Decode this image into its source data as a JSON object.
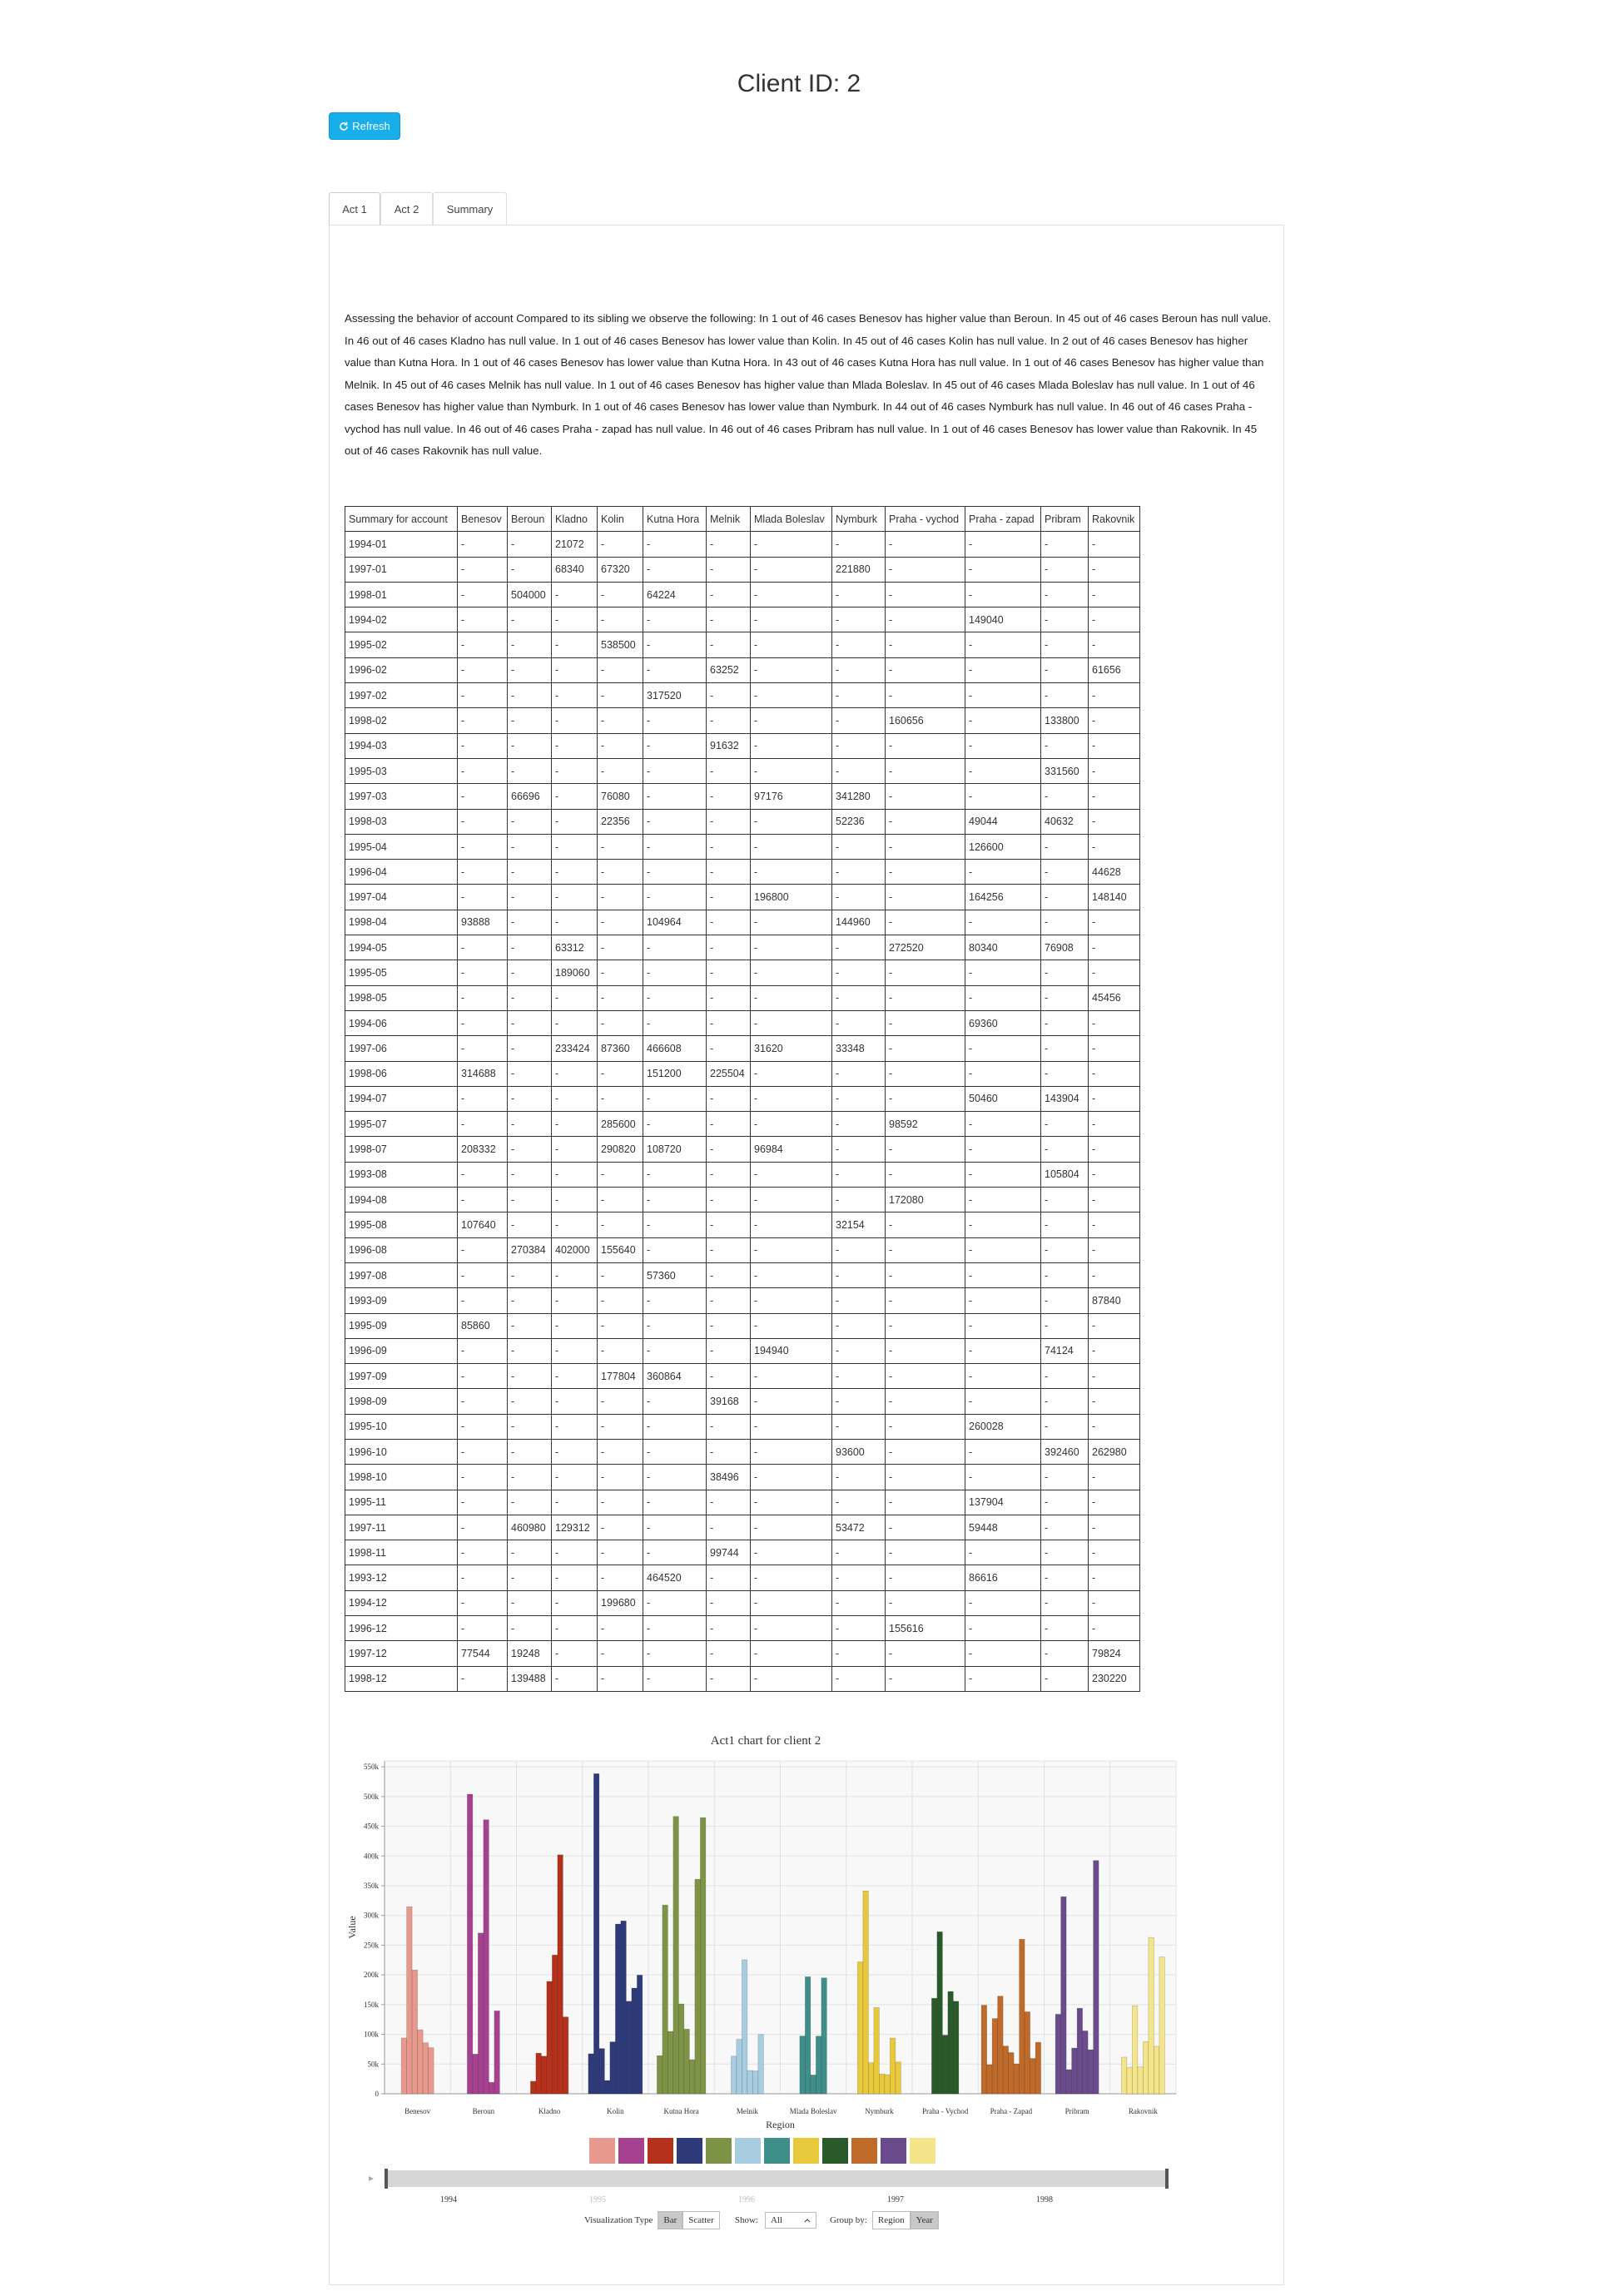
{
  "header": {
    "title": "Client ID: 2",
    "refresh": "Refresh"
  },
  "tabs": [
    "Act 1",
    "Act 2",
    "Summary"
  ],
  "description": "Assessing the behavior of account Compared to its sibling we observe the following: In 1 out of 46 cases Benesov has higher value than Beroun. In 45 out of 46 cases Beroun has null value. In 46 out of 46 cases Kladno has null value. In 1 out of 46 cases Benesov has lower value than Kolin. In 45 out of 46 cases Kolin has null value. In 2 out of 46 cases Benesov has higher value than Kutna Hora. In 1 out of 46 cases Benesov has lower value than Kutna Hora. In 43 out of 46 cases Kutna Hora has null value. In 1 out of 46 cases Benesov has higher value than Melnik. In 45 out of 46 cases Melnik has null value. In 1 out of 46 cases Benesov has higher value than Mlada Boleslav. In 45 out of 46 cases Mlada Boleslav has null value. In 1 out of 46 cases Benesov has higher value than Nymburk. In 1 out of 46 cases Benesov has lower value than Nymburk. In 44 out of 46 cases Nymburk has null value. In 46 out of 46 cases Praha - vychod has null value. In 46 out of 46 cases Praha - zapad has null value. In 46 out of 46 cases Pribram has null value. In 1 out of 46 cases Benesov has lower value than Rakovnik. In 45 out of 46 cases Rakovnik has null value.",
  "table": {
    "columns": [
      "Summary for account",
      "Benesov",
      "Beroun",
      "Kladno",
      "Kolin",
      "Kutna Hora",
      "Melnik",
      "Mlada Boleslav",
      "Nymburk",
      "Praha - vychod",
      "Praha - zapad",
      "Pribram",
      "Rakovnik"
    ],
    "rows": [
      [
        "1994-01",
        "-",
        "-",
        21072,
        "-",
        "-",
        "-",
        "-",
        "-",
        "-",
        "-",
        "-",
        "-"
      ],
      [
        "1997-01",
        "-",
        "-",
        68340,
        67320,
        "-",
        "-",
        "-",
        221880,
        "-",
        "-",
        "-",
        "-"
      ],
      [
        "1998-01",
        "-",
        504000,
        "-",
        "-",
        64224,
        "-",
        "-",
        "-",
        "-",
        "-",
        "-",
        "-"
      ],
      [
        "1994-02",
        "-",
        "-",
        "-",
        "-",
        "-",
        "-",
        "-",
        "-",
        "-",
        149040,
        "-",
        "-"
      ],
      [
        "1995-02",
        "-",
        "-",
        "-",
        538500,
        "-",
        "-",
        "-",
        "-",
        "-",
        "-",
        "-",
        "-"
      ],
      [
        "1996-02",
        "-",
        "-",
        "-",
        "-",
        "-",
        63252,
        "-",
        "-",
        "-",
        "-",
        "-",
        61656
      ],
      [
        "1997-02",
        "-",
        "-",
        "-",
        "-",
        317520,
        "-",
        "-",
        "-",
        "-",
        "-",
        "-",
        "-"
      ],
      [
        "1998-02",
        "-",
        "-",
        "-",
        "-",
        "-",
        "-",
        "-",
        "-",
        160656,
        "-",
        133800,
        "-"
      ],
      [
        "1994-03",
        "-",
        "-",
        "-",
        "-",
        "-",
        91632,
        "-",
        "-",
        "-",
        "-",
        "-",
        "-"
      ],
      [
        "1995-03",
        "-",
        "-",
        "-",
        "-",
        "-",
        "-",
        "-",
        "-",
        "-",
        "-",
        331560,
        "-"
      ],
      [
        "1997-03",
        "-",
        66696,
        "-",
        76080,
        "-",
        "-",
        97176,
        341280,
        "-",
        "-",
        "-",
        "-"
      ],
      [
        "1998-03",
        "-",
        "-",
        "-",
        22356,
        "-",
        "-",
        "-",
        52236,
        "-",
        49044,
        40632,
        "-"
      ],
      [
        "1995-04",
        "-",
        "-",
        "-",
        "-",
        "-",
        "-",
        "-",
        "-",
        "-",
        126600,
        "-",
        "-"
      ],
      [
        "1996-04",
        "-",
        "-",
        "-",
        "-",
        "-",
        "-",
        "-",
        "-",
        "-",
        "-",
        "-",
        44628
      ],
      [
        "1997-04",
        "-",
        "-",
        "-",
        "-",
        "-",
        "-",
        196800,
        "-",
        "-",
        164256,
        "-",
        148140
      ],
      [
        "1998-04",
        93888,
        "-",
        "-",
        "-",
        104964,
        "-",
        "-",
        144960,
        "-",
        "-",
        "-",
        "-"
      ],
      [
        "1994-05",
        "-",
        "-",
        63312,
        "-",
        "-",
        "-",
        "-",
        "-",
        272520,
        80340,
        76908,
        "-"
      ],
      [
        "1995-05",
        "-",
        "-",
        189060,
        "-",
        "-",
        "-",
        "-",
        "-",
        "-",
        "-",
        "-",
        "-"
      ],
      [
        "1998-05",
        "-",
        "-",
        "-",
        "-",
        "-",
        "-",
        "-",
        "-",
        "-",
        "-",
        "-",
        45456
      ],
      [
        "1994-06",
        "-",
        "-",
        "-",
        "-",
        "-",
        "-",
        "-",
        "-",
        "-",
        69360,
        "-",
        "-"
      ],
      [
        "1997-06",
        "-",
        "-",
        233424,
        87360,
        466608,
        "-",
        31620,
        33348,
        "-",
        "-",
        "-",
        "-"
      ],
      [
        "1998-06",
        314688,
        "-",
        "-",
        "-",
        151200,
        225504,
        "-",
        "-",
        "-",
        "-",
        "-",
        "-"
      ],
      [
        "1994-07",
        "-",
        "-",
        "-",
        "-",
        "-",
        "-",
        "-",
        "-",
        "-",
        50460,
        143904,
        "-"
      ],
      [
        "1995-07",
        "-",
        "-",
        "-",
        285600,
        "-",
        "-",
        "-",
        "-",
        98592,
        "-",
        "-",
        "-"
      ],
      [
        "1998-07",
        208332,
        "-",
        "-",
        290820,
        108720,
        "-",
        96984,
        "-",
        "-",
        "-",
        "-",
        "-"
      ],
      [
        "1993-08",
        "-",
        "-",
        "-",
        "-",
        "-",
        "-",
        "-",
        "-",
        "-",
        "-",
        105804,
        "-"
      ],
      [
        "1994-08",
        "-",
        "-",
        "-",
        "-",
        "-",
        "-",
        "-",
        "-",
        172080,
        "-",
        "-",
        "-"
      ],
      [
        "1995-08",
        107640,
        "-",
        "-",
        "-",
        "-",
        "-",
        "-",
        32154,
        "-",
        "-",
        "-",
        "-"
      ],
      [
        "1996-08",
        "-",
        270384,
        402000,
        155640,
        "-",
        "-",
        "-",
        "-",
        "-",
        "-",
        "-",
        "-"
      ],
      [
        "1997-08",
        "-",
        "-",
        "-",
        "-",
        57360,
        "-",
        "-",
        "-",
        "-",
        "-",
        "-",
        "-"
      ],
      [
        "1993-09",
        "-",
        "-",
        "-",
        "-",
        "-",
        "-",
        "-",
        "-",
        "-",
        "-",
        "-",
        87840
      ],
      [
        "1995-09",
        85860,
        "-",
        "-",
        "-",
        "-",
        "-",
        "-",
        "-",
        "-",
        "-",
        "-",
        "-"
      ],
      [
        "1996-09",
        "-",
        "-",
        "-",
        "-",
        "-",
        "-",
        194940,
        "-",
        "-",
        "-",
        74124,
        "-"
      ],
      [
        "1997-09",
        "-",
        "-",
        "-",
        177804,
        360864,
        "-",
        "-",
        "-",
        "-",
        "-",
        "-",
        "-"
      ],
      [
        "1998-09",
        "-",
        "-",
        "-",
        "-",
        "-",
        39168,
        "-",
        "-",
        "-",
        "-",
        "-",
        "-"
      ],
      [
        "1995-10",
        "-",
        "-",
        "-",
        "-",
        "-",
        "-",
        "-",
        "-",
        "-",
        260028,
        "-",
        "-"
      ],
      [
        "1996-10",
        "-",
        "-",
        "-",
        "-",
        "-",
        "-",
        "-",
        93600,
        "-",
        "-",
        392460,
        262980
      ],
      [
        "1998-10",
        "-",
        "-",
        "-",
        "-",
        "-",
        38496,
        "-",
        "-",
        "-",
        "-",
        "-",
        "-"
      ],
      [
        "1995-11",
        "-",
        "-",
        "-",
        "-",
        "-",
        "-",
        "-",
        "-",
        "-",
        137904,
        "-",
        "-"
      ],
      [
        "1997-11",
        "-",
        460980,
        129312,
        "-",
        "-",
        "-",
        "-",
        53472,
        "-",
        59448,
        "-",
        "-"
      ],
      [
        "1998-11",
        "-",
        "-",
        "-",
        "-",
        "-",
        99744,
        "-",
        "-",
        "-",
        "-",
        "-",
        "-"
      ],
      [
        "1993-12",
        "-",
        "-",
        "-",
        "-",
        464520,
        "-",
        "-",
        "-",
        "-",
        86616,
        "-",
        "-"
      ],
      [
        "1994-12",
        "-",
        "-",
        "-",
        199680,
        "-",
        "-",
        "-",
        "-",
        "-",
        "-",
        "-",
        "-"
      ],
      [
        "1996-12",
        "-",
        "-",
        "-",
        "-",
        "-",
        "-",
        "-",
        "-",
        155616,
        "-",
        "-",
        "-"
      ],
      [
        "1997-12",
        77544,
        19248,
        "-",
        "-",
        "-",
        "-",
        "-",
        "-",
        "-",
        "-",
        "-",
        79824
      ],
      [
        "1998-12",
        "-",
        139488,
        "-",
        "-",
        "-",
        "-",
        "-",
        "-",
        "-",
        "-",
        "-",
        230220
      ]
    ]
  },
  "chart_data": {
    "type": "bar",
    "title": "Act1 chart for client 2",
    "x_label": "Region",
    "y_label": "Value",
    "categories": [
      "Benesov",
      "Beroun",
      "Kladno",
      "Kolin",
      "Kutna Hora",
      "Melnik",
      "Mlada Boleslav",
      "Nymburk",
      "Praha - Vychod",
      "Praha - Zapad",
      "Pribram",
      "Rakovnik"
    ],
    "colors": [
      "#e8998d",
      "#a6418f",
      "#b5311b",
      "#2e3a7a",
      "#7d9446",
      "#a9cde0",
      "#3e8e8a",
      "#e8c93c",
      "#2b5a2a",
      "#c06a2a",
      "#6a4c8c",
      "#f5e58a"
    ],
    "ylim": [
      0,
      560000
    ],
    "yticks": [
      0,
      {
        "value": 50000,
        "label": "50k"
      },
      {
        "value": 100000,
        "label": "100k"
      },
      {
        "value": 150000,
        "label": "150k"
      },
      {
        "value": 200000,
        "label": "200k"
      },
      {
        "value": 250000,
        "label": "250k"
      },
      {
        "value": 300000,
        "label": "300k"
      },
      {
        "value": 350000,
        "label": "350k"
      },
      {
        "value": 400000,
        "label": "400k"
      },
      {
        "value": 450000,
        "label": "450k"
      },
      {
        "value": 500000,
        "label": "500k"
      },
      {
        "value": 550000,
        "label": "550k"
      }
    ],
    "grid": true
  },
  "controls": {
    "slider_ticks": [
      1994,
      1995,
      1996,
      1997,
      1998
    ],
    "visualization_label": "Visualization Type",
    "visualization_options": [
      "Bar",
      "Scatter"
    ],
    "show_label": "Show:",
    "show_value": "All",
    "group_label": "Group by:",
    "group_options": [
      "Region",
      "Year"
    ]
  }
}
